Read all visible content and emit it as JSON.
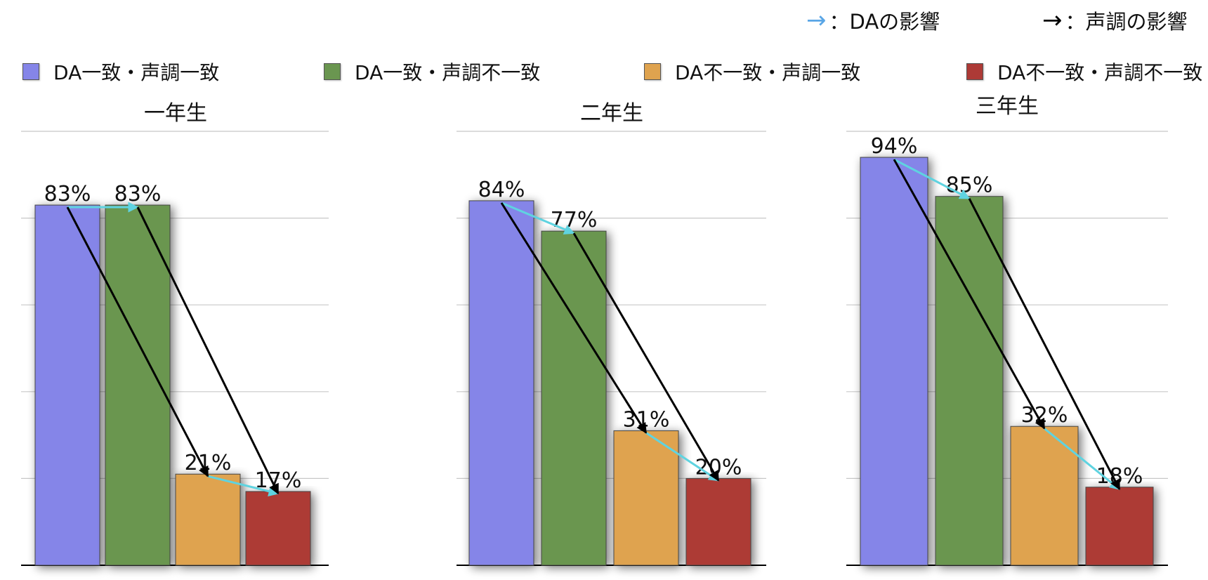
{
  "arrow_legend": [
    {
      "glyph": "→",
      "label": "：DAの影響",
      "color": "#5aa6e6"
    },
    {
      "glyph": "→",
      "label": "：声調の影響",
      "color": "#000000"
    }
  ],
  "colors": {
    "DA一致・声調一致": "#8585e8",
    "DA一致・声調不一致": "#6a9650",
    "DA不一致・声調一致": "#dfa34f",
    "DA不一致・声調不一致": "#ad3a36",
    "da_arrow": "#5fd3e0",
    "tone_arrow": "#000000"
  },
  "chart_data": [
    {
      "type": "bar",
      "title": "一年生",
      "categories": [
        "DA一致・声調一致",
        "DA一致・声調不一致",
        "DA不一致・声調一致",
        "DA不一致・声調不一致"
      ],
      "values": [
        83,
        83,
        21,
        17
      ],
      "data_labels": [
        "83%",
        "83%",
        "21%",
        "17%"
      ],
      "ylim": [
        0,
        100
      ],
      "grid": true,
      "legend": "top",
      "arrows": [
        {
          "from": 0,
          "to": 1,
          "kind": "da"
        },
        {
          "from": 2,
          "to": 3,
          "kind": "da"
        },
        {
          "from": 0,
          "to": 2,
          "kind": "tone"
        },
        {
          "from": 1,
          "to": 3,
          "kind": "tone"
        }
      ]
    },
    {
      "type": "bar",
      "title": "二年生",
      "categories": [
        "DA一致・声調一致",
        "DA一致・声調不一致",
        "DA不一致・声調一致",
        "DA不一致・声調不一致"
      ],
      "values": [
        84,
        77,
        31,
        20
      ],
      "data_labels": [
        "84%",
        "77%",
        "31%",
        "20%"
      ],
      "ylim": [
        0,
        100
      ],
      "grid": true,
      "legend": "top",
      "arrows": [
        {
          "from": 0,
          "to": 1,
          "kind": "da"
        },
        {
          "from": 2,
          "to": 3,
          "kind": "da"
        },
        {
          "from": 0,
          "to": 2,
          "kind": "tone"
        },
        {
          "from": 1,
          "to": 3,
          "kind": "tone"
        }
      ]
    },
    {
      "type": "bar",
      "title": "三年生",
      "categories": [
        "DA一致・声調一致",
        "DA一致・声調不一致",
        "DA不一致・声調一致",
        "DA不一致・声調不一致"
      ],
      "values": [
        94,
        85,
        32,
        18
      ],
      "data_labels": [
        "94%",
        "85%",
        "32%",
        "18%"
      ],
      "ylim": [
        0,
        100
      ],
      "grid": true,
      "legend": "top",
      "arrows": [
        {
          "from": 0,
          "to": 1,
          "kind": "da"
        },
        {
          "from": 2,
          "to": 3,
          "kind": "da"
        },
        {
          "from": 0,
          "to": 2,
          "kind": "tone"
        },
        {
          "from": 1,
          "to": 3,
          "kind": "tone"
        }
      ]
    }
  ]
}
